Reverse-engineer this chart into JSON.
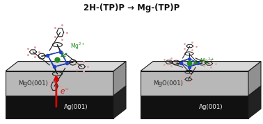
{
  "title": "2H-(TP)P → Mg-(TP)P",
  "title_fontsize": 8.5,
  "title_fontweight": "bold",
  "bg_color": "#ffffff",
  "outline_color": "#1a1a1a",
  "mgo_top_color": "#c8c8c8",
  "mgo_side_color": "#a0a0a0",
  "mgo_right_color": "#888888",
  "mgo_label": "MgO(001)",
  "mgo_label_color": "#222222",
  "ag_color": "#111111",
  "ag_label": "Ag(001)",
  "ag_label_color": "#ffffff",
  "mg2plus_color": "#228B22",
  "arrow_red": "#dd0000",
  "blue_bond": "#2244cc",
  "mol_color": "#1a1a1a",
  "h_color": "#e8a0a0",
  "green_center": "#228B22"
}
